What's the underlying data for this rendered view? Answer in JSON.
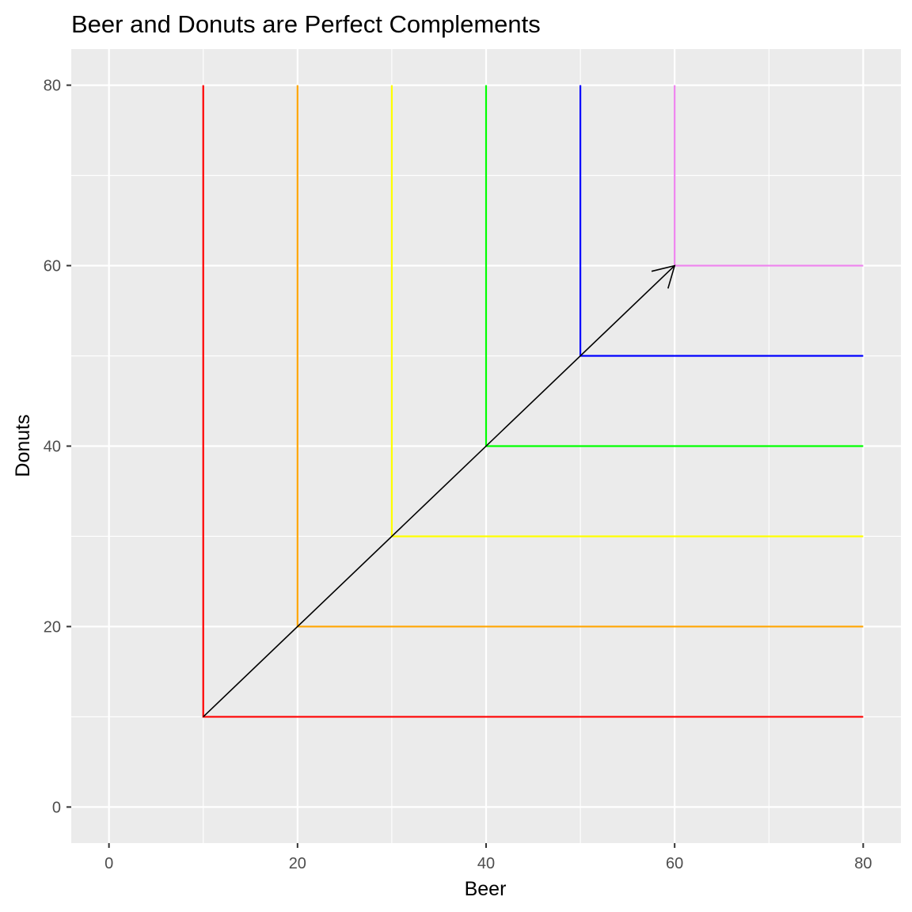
{
  "chart_data": {
    "type": "line",
    "title": "Beer and Donuts are Perfect Complements",
    "xlabel": "Beer",
    "ylabel": "Donuts",
    "xlim": [
      -4,
      84
    ],
    "ylim": [
      -4,
      84
    ],
    "x_ticks": [
      0,
      20,
      40,
      60,
      80
    ],
    "y_ticks": [
      0,
      20,
      40,
      60,
      80
    ],
    "x_tick_labels": [
      "0",
      "20",
      "40",
      "60",
      "80"
    ],
    "y_tick_labels": [
      "0",
      "20",
      "40",
      "60",
      "80"
    ],
    "x_minor_gridlines": [
      10,
      30,
      50,
      70
    ],
    "y_minor_gridlines": [
      10,
      30,
      50,
      70
    ],
    "grid": true,
    "legend": "none",
    "panel_background": "#ebebeb",
    "gridline_color": "#ffffff",
    "series": [
      {
        "color": "#ff0000",
        "x": [
          10,
          10,
          80
        ],
        "y": [
          80,
          10,
          10
        ]
      },
      {
        "color": "#ffa500",
        "x": [
          20,
          20,
          80
        ],
        "y": [
          80,
          20,
          20
        ]
      },
      {
        "color": "#ffff00",
        "x": [
          30,
          30,
          80
        ],
        "y": [
          80,
          30,
          30
        ]
      },
      {
        "color": "#00ff00",
        "x": [
          40,
          40,
          80
        ],
        "y": [
          80,
          40,
          40
        ]
      },
      {
        "color": "#0000ff",
        "x": [
          50,
          50,
          80
        ],
        "y": [
          80,
          50,
          50
        ]
      },
      {
        "color": "#ee82ee",
        "x": [
          60,
          60,
          80
        ],
        "y": [
          80,
          60,
          60
        ]
      }
    ],
    "arrow": {
      "color": "#000000",
      "from": [
        10,
        10
      ],
      "to": [
        60,
        60
      ]
    }
  }
}
